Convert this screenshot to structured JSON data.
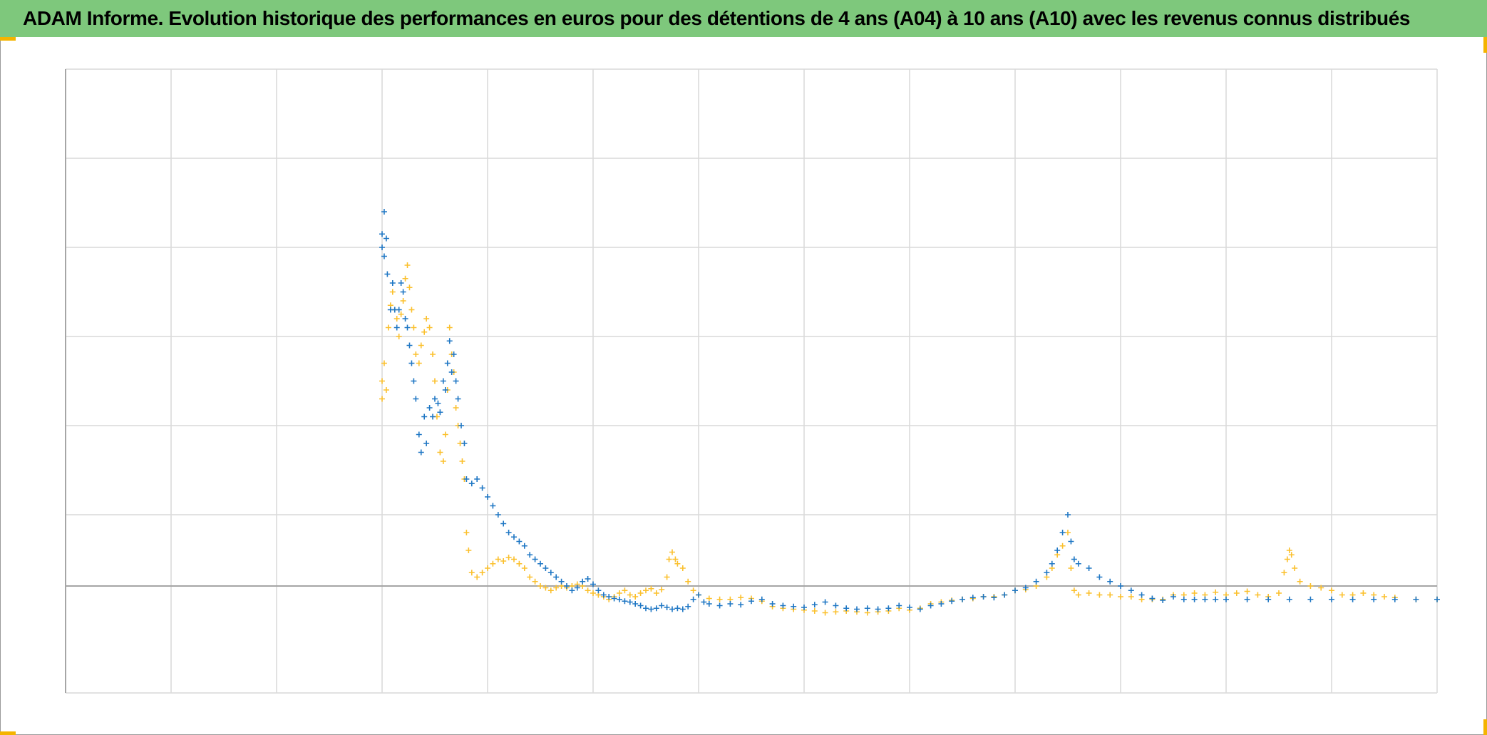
{
  "header": {
    "title": "ADAM Informe. Evolution historique des performances en euros pour des détentions de 4 ans (A04) à 10 ans (A10) avec les revenus connus distribués"
  },
  "colors": {
    "header_bg": "#7ec87c",
    "series_a04": "#1f77c4",
    "series_a10": "#fbc02d",
    "grid": "#d9d9d9",
    "zero_line": "#a6a6a6",
    "corner_accent": "#f4b400"
  },
  "chart_data": {
    "type": "scatter",
    "marker": "plus",
    "title": "",
    "xlabel": "",
    "ylabel": "",
    "xlim": [
      0,
      13
    ],
    "ylim": [
      -1.2,
      5.8
    ],
    "x_gridlines": 13,
    "y_gridlines": [
      -1.2,
      0,
      0.8,
      1.8,
      2.8,
      3.8,
      4.8,
      5.8
    ],
    "grid": true,
    "legend": "none",
    "series": [
      {
        "color": "#1f77c4",
        "points": [
          [
            3.0,
            3.8
          ],
          [
            3.0,
            3.95
          ],
          [
            3.02,
            3.7
          ],
          [
            3.02,
            4.2
          ],
          [
            3.04,
            3.9
          ],
          [
            3.05,
            3.5
          ],
          [
            3.08,
            3.1
          ],
          [
            3.1,
            3.4
          ],
          [
            3.12,
            3.1
          ],
          [
            3.14,
            2.9
          ],
          [
            3.16,
            3.1
          ],
          [
            3.18,
            3.4
          ],
          [
            3.2,
            3.3
          ],
          [
            3.22,
            3.0
          ],
          [
            3.24,
            2.9
          ],
          [
            3.26,
            2.7
          ],
          [
            3.28,
            2.5
          ],
          [
            3.3,
            2.3
          ],
          [
            3.32,
            2.1
          ],
          [
            3.35,
            1.7
          ],
          [
            3.37,
            1.5
          ],
          [
            3.4,
            1.9
          ],
          [
            3.42,
            1.6
          ],
          [
            3.45,
            2.0
          ],
          [
            3.48,
            1.9
          ],
          [
            3.5,
            2.1
          ],
          [
            3.53,
            2.05
          ],
          [
            3.55,
            1.95
          ],
          [
            3.58,
            2.3
          ],
          [
            3.6,
            2.2
          ],
          [
            3.62,
            2.5
          ],
          [
            3.64,
            2.75
          ],
          [
            3.66,
            2.4
          ],
          [
            3.68,
            2.6
          ],
          [
            3.7,
            2.3
          ],
          [
            3.72,
            2.1
          ],
          [
            3.75,
            1.8
          ],
          [
            3.78,
            1.6
          ],
          [
            3.8,
            1.2
          ],
          [
            3.85,
            1.15
          ],
          [
            3.9,
            1.2
          ],
          [
            3.95,
            1.1
          ],
          [
            4.0,
            1.0
          ],
          [
            4.05,
            0.9
          ],
          [
            4.1,
            0.8
          ],
          [
            4.15,
            0.7
          ],
          [
            4.2,
            0.6
          ],
          [
            4.25,
            0.55
          ],
          [
            4.3,
            0.5
          ],
          [
            4.35,
            0.45
          ],
          [
            4.4,
            0.35
          ],
          [
            4.45,
            0.3
          ],
          [
            4.5,
            0.25
          ],
          [
            4.55,
            0.2
          ],
          [
            4.6,
            0.15
          ],
          [
            4.65,
            0.1
          ],
          [
            4.7,
            0.05
          ],
          [
            4.75,
            0.0
          ],
          [
            4.8,
            -0.05
          ],
          [
            4.85,
            -0.02
          ],
          [
            4.9,
            0.05
          ],
          [
            4.95,
            0.08
          ],
          [
            5.0,
            0.02
          ],
          [
            5.05,
            -0.05
          ],
          [
            5.1,
            -0.1
          ],
          [
            5.15,
            -0.12
          ],
          [
            5.2,
            -0.14
          ],
          [
            5.25,
            -0.15
          ],
          [
            5.3,
            -0.17
          ],
          [
            5.35,
            -0.18
          ],
          [
            5.4,
            -0.2
          ],
          [
            5.45,
            -0.22
          ],
          [
            5.5,
            -0.25
          ],
          [
            5.55,
            -0.26
          ],
          [
            5.6,
            -0.25
          ],
          [
            5.65,
            -0.22
          ],
          [
            5.7,
            -0.24
          ],
          [
            5.75,
            -0.26
          ],
          [
            5.8,
            -0.25
          ],
          [
            5.85,
            -0.26
          ],
          [
            5.9,
            -0.23
          ],
          [
            5.95,
            -0.15
          ],
          [
            6.0,
            -0.1
          ],
          [
            6.05,
            -0.18
          ],
          [
            6.1,
            -0.2
          ],
          [
            6.2,
            -0.22
          ],
          [
            6.3,
            -0.2
          ],
          [
            6.4,
            -0.21
          ],
          [
            6.5,
            -0.17
          ],
          [
            6.6,
            -0.15
          ],
          [
            6.7,
            -0.2
          ],
          [
            6.8,
            -0.22
          ],
          [
            6.9,
            -0.23
          ],
          [
            7.0,
            -0.24
          ],
          [
            7.1,
            -0.21
          ],
          [
            7.2,
            -0.18
          ],
          [
            7.3,
            -0.22
          ],
          [
            7.4,
            -0.25
          ],
          [
            7.5,
            -0.26
          ],
          [
            7.6,
            -0.25
          ],
          [
            7.7,
            -0.26
          ],
          [
            7.8,
            -0.25
          ],
          [
            7.9,
            -0.22
          ],
          [
            8.0,
            -0.24
          ],
          [
            8.1,
            -0.26
          ],
          [
            8.2,
            -0.22
          ],
          [
            8.3,
            -0.2
          ],
          [
            8.4,
            -0.17
          ],
          [
            8.5,
            -0.15
          ],
          [
            8.6,
            -0.13
          ],
          [
            8.7,
            -0.12
          ],
          [
            8.8,
            -0.13
          ],
          [
            8.9,
            -0.1
          ],
          [
            9.0,
            -0.05
          ],
          [
            9.1,
            -0.02
          ],
          [
            9.2,
            0.05
          ],
          [
            9.3,
            0.15
          ],
          [
            9.35,
            0.25
          ],
          [
            9.4,
            0.4
          ],
          [
            9.45,
            0.6
          ],
          [
            9.5,
            0.8
          ],
          [
            9.53,
            0.5
          ],
          [
            9.56,
            0.3
          ],
          [
            9.6,
            0.25
          ],
          [
            9.7,
            0.2
          ],
          [
            9.8,
            0.1
          ],
          [
            9.9,
            0.05
          ],
          [
            10.0,
            0.0
          ],
          [
            10.1,
            -0.05
          ],
          [
            10.2,
            -0.1
          ],
          [
            10.3,
            -0.14
          ],
          [
            10.4,
            -0.16
          ],
          [
            10.5,
            -0.12
          ],
          [
            10.6,
            -0.15
          ],
          [
            10.7,
            -0.15
          ],
          [
            10.8,
            -0.15
          ],
          [
            10.9,
            -0.15
          ],
          [
            11.0,
            -0.15
          ],
          [
            11.2,
            -0.15
          ],
          [
            11.4,
            -0.15
          ],
          [
            11.6,
            -0.15
          ],
          [
            11.8,
            -0.15
          ],
          [
            12.0,
            -0.15
          ],
          [
            12.2,
            -0.15
          ],
          [
            12.4,
            -0.15
          ],
          [
            12.6,
            -0.15
          ],
          [
            12.8,
            -0.15
          ],
          [
            13.0,
            -0.15
          ]
        ]
      },
      {
        "color": "#fbc02d",
        "points": [
          [
            3.0,
            2.3
          ],
          [
            3.0,
            2.1
          ],
          [
            3.02,
            2.5
          ],
          [
            3.04,
            2.2
          ],
          [
            3.06,
            2.9
          ],
          [
            3.08,
            3.15
          ],
          [
            3.1,
            3.3
          ],
          [
            3.12,
            3.1
          ],
          [
            3.14,
            3.0
          ],
          [
            3.16,
            2.8
          ],
          [
            3.18,
            3.05
          ],
          [
            3.2,
            3.2
          ],
          [
            3.22,
            3.45
          ],
          [
            3.24,
            3.6
          ],
          [
            3.26,
            3.35
          ],
          [
            3.28,
            3.1
          ],
          [
            3.3,
            2.9
          ],
          [
            3.32,
            2.6
          ],
          [
            3.35,
            2.5
          ],
          [
            3.37,
            2.7
          ],
          [
            3.4,
            2.85
          ],
          [
            3.42,
            3.0
          ],
          [
            3.45,
            2.9
          ],
          [
            3.48,
            2.6
          ],
          [
            3.5,
            2.3
          ],
          [
            3.52,
            1.9
          ],
          [
            3.55,
            1.5
          ],
          [
            3.58,
            1.4
          ],
          [
            3.6,
            1.7
          ],
          [
            3.62,
            2.2
          ],
          [
            3.64,
            2.9
          ],
          [
            3.66,
            2.6
          ],
          [
            3.68,
            2.4
          ],
          [
            3.7,
            2.0
          ],
          [
            3.72,
            1.8
          ],
          [
            3.74,
            1.6
          ],
          [
            3.76,
            1.4
          ],
          [
            3.78,
            1.2
          ],
          [
            3.8,
            0.6
          ],
          [
            3.82,
            0.4
          ],
          [
            3.85,
            0.15
          ],
          [
            3.9,
            0.1
          ],
          [
            3.95,
            0.15
          ],
          [
            4.0,
            0.2
          ],
          [
            4.05,
            0.25
          ],
          [
            4.1,
            0.3
          ],
          [
            4.15,
            0.28
          ],
          [
            4.2,
            0.32
          ],
          [
            4.25,
            0.3
          ],
          [
            4.3,
            0.25
          ],
          [
            4.35,
            0.2
          ],
          [
            4.4,
            0.1
          ],
          [
            4.45,
            0.05
          ],
          [
            4.5,
            0.0
          ],
          [
            4.55,
            -0.02
          ],
          [
            4.6,
            -0.05
          ],
          [
            4.65,
            -0.02
          ],
          [
            4.7,
            0.0
          ],
          [
            4.75,
            -0.02
          ],
          [
            4.8,
            0.0
          ],
          [
            4.85,
            0.02
          ],
          [
            4.9,
            0.0
          ],
          [
            4.95,
            -0.05
          ],
          [
            5.0,
            -0.08
          ],
          [
            5.05,
            -0.1
          ],
          [
            5.1,
            -0.12
          ],
          [
            5.15,
            -0.15
          ],
          [
            5.2,
            -0.12
          ],
          [
            5.25,
            -0.08
          ],
          [
            5.3,
            -0.05
          ],
          [
            5.35,
            -0.1
          ],
          [
            5.4,
            -0.12
          ],
          [
            5.45,
            -0.08
          ],
          [
            5.5,
            -0.05
          ],
          [
            5.55,
            -0.03
          ],
          [
            5.6,
            -0.08
          ],
          [
            5.65,
            -0.04
          ],
          [
            5.7,
            0.1
          ],
          [
            5.72,
            0.3
          ],
          [
            5.75,
            0.38
          ],
          [
            5.78,
            0.3
          ],
          [
            5.8,
            0.25
          ],
          [
            5.85,
            0.2
          ],
          [
            5.9,
            0.05
          ],
          [
            5.95,
            -0.05
          ],
          [
            6.0,
            -0.1
          ],
          [
            6.1,
            -0.14
          ],
          [
            6.2,
            -0.15
          ],
          [
            6.3,
            -0.15
          ],
          [
            6.4,
            -0.13
          ],
          [
            6.5,
            -0.14
          ],
          [
            6.6,
            -0.17
          ],
          [
            6.7,
            -0.23
          ],
          [
            6.8,
            -0.25
          ],
          [
            6.9,
            -0.26
          ],
          [
            7.0,
            -0.27
          ],
          [
            7.1,
            -0.28
          ],
          [
            7.2,
            -0.3
          ],
          [
            7.3,
            -0.29
          ],
          [
            7.4,
            -0.28
          ],
          [
            7.5,
            -0.29
          ],
          [
            7.6,
            -0.3
          ],
          [
            7.7,
            -0.29
          ],
          [
            7.8,
            -0.28
          ],
          [
            7.9,
            -0.25
          ],
          [
            8.0,
            -0.27
          ],
          [
            8.1,
            -0.25
          ],
          [
            8.2,
            -0.2
          ],
          [
            8.3,
            -0.18
          ],
          [
            8.4,
            -0.16
          ],
          [
            8.5,
            -0.15
          ],
          [
            8.6,
            -0.14
          ],
          [
            8.7,
            -0.12
          ],
          [
            8.8,
            -0.12
          ],
          [
            8.9,
            -0.1
          ],
          [
            9.0,
            -0.05
          ],
          [
            9.1,
            -0.04
          ],
          [
            9.2,
            0.0
          ],
          [
            9.3,
            0.1
          ],
          [
            9.35,
            0.2
          ],
          [
            9.4,
            0.35
          ],
          [
            9.45,
            0.45
          ],
          [
            9.5,
            0.6
          ],
          [
            9.53,
            0.2
          ],
          [
            9.56,
            -0.05
          ],
          [
            9.6,
            -0.1
          ],
          [
            9.7,
            -0.08
          ],
          [
            9.8,
            -0.1
          ],
          [
            9.9,
            -0.1
          ],
          [
            10.0,
            -0.12
          ],
          [
            10.1,
            -0.12
          ],
          [
            10.2,
            -0.15
          ],
          [
            10.3,
            -0.15
          ],
          [
            10.4,
            -0.15
          ],
          [
            10.5,
            -0.1
          ],
          [
            10.6,
            -0.1
          ],
          [
            10.7,
            -0.08
          ],
          [
            10.8,
            -0.1
          ],
          [
            10.9,
            -0.07
          ],
          [
            11.0,
            -0.1
          ],
          [
            11.1,
            -0.08
          ],
          [
            11.2,
            -0.06
          ],
          [
            11.3,
            -0.1
          ],
          [
            11.4,
            -0.12
          ],
          [
            11.5,
            -0.08
          ],
          [
            11.55,
            0.15
          ],
          [
            11.58,
            0.3
          ],
          [
            11.6,
            0.4
          ],
          [
            11.62,
            0.35
          ],
          [
            11.65,
            0.2
          ],
          [
            11.7,
            0.05
          ],
          [
            11.8,
            0.0
          ],
          [
            11.9,
            -0.02
          ],
          [
            12.0,
            -0.05
          ],
          [
            12.1,
            -0.1
          ],
          [
            12.2,
            -0.1
          ],
          [
            12.3,
            -0.08
          ],
          [
            12.4,
            -0.1
          ],
          [
            12.5,
            -0.12
          ],
          [
            12.6,
            -0.13
          ],
          [
            12.8,
            -0.15
          ],
          [
            13.0,
            -0.15
          ]
        ]
      }
    ]
  }
}
